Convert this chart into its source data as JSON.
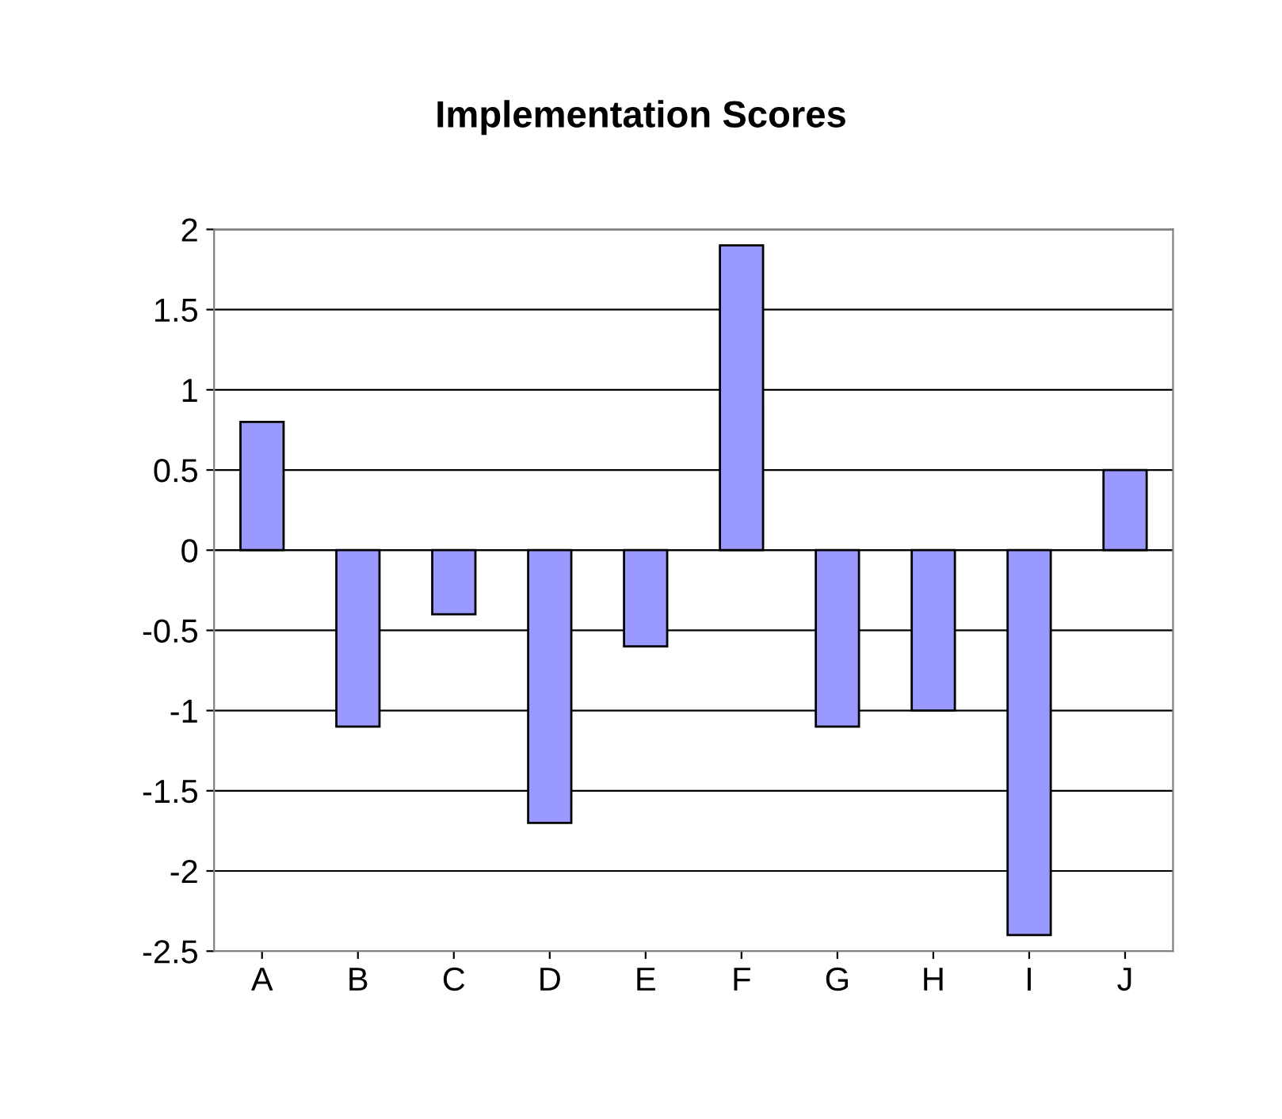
{
  "chart_data": {
    "type": "bar",
    "title": "Implementation Scores",
    "categories": [
      "A",
      "B",
      "C",
      "D",
      "E",
      "F",
      "G",
      "H",
      "I",
      "J"
    ],
    "values": [
      0.8,
      -1.1,
      -0.4,
      -1.7,
      -0.6,
      1.9,
      -1.1,
      -1.0,
      -2.4,
      0.5
    ],
    "color": "#9999ff",
    "ylim": [
      -2.5,
      2
    ],
    "yticks": [
      -2.5,
      -2,
      -1.5,
      -1,
      -0.5,
      0,
      0.5,
      1,
      1.5,
      2
    ],
    "grid": "y",
    "legend": false
  }
}
